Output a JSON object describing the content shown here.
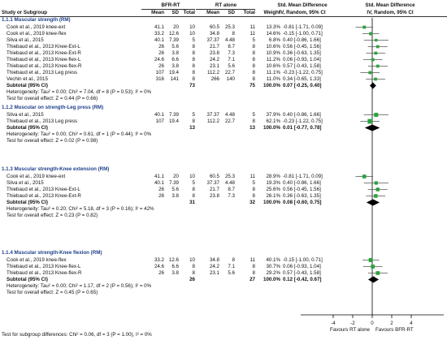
{
  "header": {
    "group1": "BFR-RT",
    "group2": "RT alone",
    "smd_title": "Std. Mean Difference",
    "smd_title2": "Std. Mean Difference",
    "study": "Study or Subgroup",
    "mean1": "Mean",
    "sd1": "SD",
    "total1": "Total",
    "mean2": "Mean",
    "sd2": "SD",
    "total2": "Total",
    "weight": "Weight",
    "ci_label": "IV, Random, 95% CI",
    "ci_label2": "IV, Random, 95% CI"
  },
  "subgroups": [
    {
      "title": "1.1.1 Muscular strength (RM)",
      "rows": [
        {
          "study": "Cook et al., 2019 knee-ext",
          "m1": "41.1",
          "sd1": "20",
          "n1": "10",
          "m2": "60.5",
          "sd2": "25.3",
          "n2": "11",
          "w": "13.3%",
          "ci": "-0.81 [-1.71, 0.09]",
          "est": -0.81,
          "lo": -1.71,
          "hi": 0.09,
          "wt": 13.3
        },
        {
          "study": "Cook et al., 2019 knee-flex",
          "m1": "33.2",
          "sd1": "12.6",
          "n1": "10",
          "m2": "34.8",
          "sd2": "8",
          "n2": "11",
          "w": "14.6%",
          "ci": "-0.15 [-1.00, 0.71]",
          "est": -0.15,
          "lo": -1.0,
          "hi": 0.71,
          "wt": 14.6
        },
        {
          "study": "Silva et al., 2015",
          "m1": "40.1",
          "sd1": "7.39",
          "n1": "5",
          "m2": "37.37",
          "sd2": "4.48",
          "n2": "5",
          "w": "6.8%",
          "ci": "0.40 [-0.86, 1.66]",
          "est": 0.4,
          "lo": -0.86,
          "hi": 1.66,
          "wt": 6.8
        },
        {
          "study": "Thiebaud et al., 2013 Knee-Ext-L",
          "m1": "26",
          "sd1": "5.6",
          "n1": "8",
          "m2": "21.7",
          "sd2": "8.7",
          "n2": "8",
          "w": "10.6%",
          "ci": "0.56 [-0.45, 1.56]",
          "est": 0.56,
          "lo": -0.45,
          "hi": 1.56,
          "wt": 10.6
        },
        {
          "study": "Thiebaud et al., 2013 Knee-Ext-R",
          "m1": "26",
          "sd1": "3.8",
          "n1": "8",
          "m2": "23.8",
          "sd2": "7.3",
          "n2": "8",
          "w": "10.9%",
          "ci": "0.36 [-0.63, 1.35]",
          "est": 0.36,
          "lo": -0.63,
          "hi": 1.35,
          "wt": 10.9
        },
        {
          "study": "Thiebaud et al., 2013 Knee-flex-L",
          "m1": "24.6",
          "sd1": "6.6",
          "n1": "8",
          "m2": "24.2",
          "sd2": "7.1",
          "n2": "8",
          "w": "11.2%",
          "ci": "0.06 [-0.93, 1.04]",
          "est": 0.06,
          "lo": -0.93,
          "hi": 1.04,
          "wt": 11.2
        },
        {
          "study": "Thiebaud et al., 2013 Knee-flex-R",
          "m1": "26",
          "sd1": "3.8",
          "n1": "8",
          "m2": "23.1",
          "sd2": "5.6",
          "n2": "8",
          "w": "10.6%",
          "ci": "0.57 [-0.43, 1.58]",
          "est": 0.57,
          "lo": -0.43,
          "hi": 1.58,
          "wt": 10.6
        },
        {
          "study": "Thiebaud et al., 2013 Leg press",
          "m1": "107",
          "sd1": "19.4",
          "n1": "8",
          "m2": "112.2",
          "sd2": "22.7",
          "n2": "8",
          "w": "11.1%",
          "ci": "-0.23 [-1.22, 0.75]",
          "est": -0.23,
          "lo": -1.22,
          "hi": 0.75,
          "wt": 11.1
        },
        {
          "study": "Vechin et al., 2015",
          "m1": "316",
          "sd1": "141",
          "n1": "8",
          "m2": "266",
          "sd2": "140",
          "n2": "8",
          "w": "11.0%",
          "ci": "0.34 [-0.65, 1.33]",
          "est": 0.34,
          "lo": -0.65,
          "hi": 1.33,
          "wt": 11.0
        }
      ],
      "subtotal": {
        "label": "Subtotal (95% CI)",
        "n1": "73",
        "n2": "75",
        "w": "100.0%",
        "ci": "0.07 [-0.25, 0.40]",
        "est": 0.07,
        "lo": -0.25,
        "hi": 0.4
      },
      "heterogeneity": "Heterogeneity: Tau² = 0.00; Chi² = 7.04, df = 8 (P = 0.53); I² = 0%",
      "overall": "Test for overall effect: Z = 0.44 (P = 0.66)"
    },
    {
      "title": "1.1.2 Muscular on strength-Leg press (RM)",
      "rows": [
        {
          "study": "Silva et al., 2015",
          "m1": "40.1",
          "sd1": "7.39",
          "n1": "5",
          "m2": "37.37",
          "sd2": "4.48",
          "n2": "5",
          "w": "37.9%",
          "ci": "0.40 [-0.86, 1.66]",
          "est": 0.4,
          "lo": -0.86,
          "hi": 1.66,
          "wt": 37.9
        },
        {
          "study": "Thiebaud et al., 2013 Leg press",
          "m1": "107",
          "sd1": "19.4",
          "n1": "8",
          "m2": "112.2",
          "sd2": "22.7",
          "n2": "8",
          "w": "62.1%",
          "ci": "-0.23 [-1.22, 0.75]",
          "est": -0.23,
          "lo": -1.22,
          "hi": 0.75,
          "wt": 62.1
        }
      ],
      "subtotal": {
        "label": "Subtotal (95% CI)",
        "n1": "13",
        "n2": "13",
        "w": "100.0%",
        "ci": "0.01 [-0.77, 0.78]",
        "est": 0.01,
        "lo": -0.77,
        "hi": 0.78
      },
      "heterogeneity": "Heterogeneity: Tau² = 0.00; Chi² = 0.61, df = 1 (P = 0.44); I² = 0%",
      "overall": "Test for overall effect: Z = 0.02 (P = 0.98)"
    },
    {
      "title": "1.1.3 Muscular strength-Knee extension (RM)",
      "rows": [
        {
          "study": "Cook et al., 2019 knee-ext",
          "m1": "41.1",
          "sd1": "20",
          "n1": "10",
          "m2": "60.5",
          "sd2": "25.3",
          "n2": "11",
          "w": "28.9%",
          "ci": "-0.81 [-1.71, 0.09]",
          "est": -0.81,
          "lo": -1.71,
          "hi": 0.09,
          "wt": 28.9
        },
        {
          "study": "Silva et al., 2015",
          "m1": "40.1",
          "sd1": "7.39",
          "n1": "5",
          "m2": "37.37",
          "sd2": "4.48",
          "n2": "5",
          "w": "19.3%",
          "ci": "0.40 [-0.86, 1.66]",
          "est": 0.4,
          "lo": -0.86,
          "hi": 1.66,
          "wt": 19.3
        },
        {
          "study": "Thiebaud et al., 2013 Knee-Ext-L",
          "m1": "26",
          "sd1": "5.6",
          "n1": "8",
          "m2": "21.7",
          "sd2": "8.7",
          "n2": "8",
          "w": "25.6%",
          "ci": "0.56 [-0.45, 1.56]",
          "est": 0.56,
          "lo": -0.45,
          "hi": 1.56,
          "wt": 25.6
        },
        {
          "study": "Thiebaud et al., 2013 Knee-Ext-R",
          "m1": "26",
          "sd1": "3.8",
          "n1": "8",
          "m2": "23.8",
          "sd2": "7.3",
          "n2": "8",
          "w": "26.1%",
          "ci": "0.36 [-0.63, 1.35]",
          "est": 0.36,
          "lo": -0.63,
          "hi": 1.35,
          "wt": 26.1
        }
      ],
      "subtotal": {
        "label": "Subtotal (95% CI)",
        "n1": "31",
        "n2": "32",
        "w": "100.0%",
        "ci": "0.08 [-0.60, 0.75]",
        "est": 0.08,
        "lo": -0.6,
        "hi": 0.75
      },
      "heterogeneity": "Heterogeneity: Tau² = 0.20; Chi² = 5.18, df = 3 (P = 0.16); I² = 42%",
      "overall": "Test for overall effect: Z = 0.23 (P = 0.82)"
    },
    {
      "title": "1.1.4 Muscular strength-Knee flexion (RM)",
      "rows": [
        {
          "study": "Cook et al., 2019 knee-flex",
          "m1": "33.2",
          "sd1": "12.6",
          "n1": "10",
          "m2": "34.8",
          "sd2": "8",
          "n2": "11",
          "w": "40.1%",
          "ci": "-0.15 [-1.00, 0.71]",
          "est": -0.15,
          "lo": -1.0,
          "hi": 0.71,
          "wt": 40.1
        },
        {
          "study": "Thiebaud et al., 2013 Knee-flex-L",
          "m1": "24.6",
          "sd1": "6.6",
          "n1": "8",
          "m2": "24.2",
          "sd2": "7.1",
          "n2": "8",
          "w": "30.7%",
          "ci": "0.06 [-0.93, 1.04]",
          "est": 0.06,
          "lo": -0.93,
          "hi": 1.04,
          "wt": 30.7
        },
        {
          "study": "Thiebaud et al., 2013 Knee-flex-R",
          "m1": "26",
          "sd1": "3.8",
          "n1": "8",
          "m2": "23.1",
          "sd2": "5.6",
          "n2": "8",
          "w": "29.2%",
          "ci": "0.57 [-0.43, 1.58]",
          "est": 0.57,
          "lo": -0.43,
          "hi": 1.58,
          "wt": 29.2
        }
      ],
      "subtotal": {
        "label": "Subtotal (95% CI)",
        "n1": "26",
        "n2": "27",
        "w": "100.0%",
        "ci": "0.12 [-0.42, 0.67]",
        "est": 0.12,
        "lo": -0.42,
        "hi": 0.67
      },
      "heterogeneity": "Heterogeneity: Tau² = 0.00; Chi² = 1.17, df = 2 (P = 0.56); I² = 0%",
      "overall": "Test for overall effect: Z = 0.45 (P = 0.65)"
    }
  ],
  "axis": {
    "ticks": [
      -4,
      -2,
      0,
      2,
      4
    ],
    "tick_labels": [
      "-4",
      "-2",
      "0",
      "2",
      "4"
    ],
    "favours_left": "Favours RT alone",
    "favours_right": "Favours BFR-RT"
  },
  "footer": {
    "subgroup_test": "Test for subgroup differences: Chi² = 0.06, df = 3 (P = 1.00), I² = 0%"
  },
  "colors": {
    "study_marker": "#2aa33a",
    "diamond": "#000000",
    "section_title": "#1d3f8a"
  },
  "chart_data": {
    "type": "forest",
    "xlim": [
      -4,
      4
    ],
    "xticks": [
      -4,
      -2,
      0,
      2,
      4
    ],
    "xlabel_left": "Favours RT alone",
    "xlabel_right": "Favours BFR-RT",
    "grid": false
  }
}
